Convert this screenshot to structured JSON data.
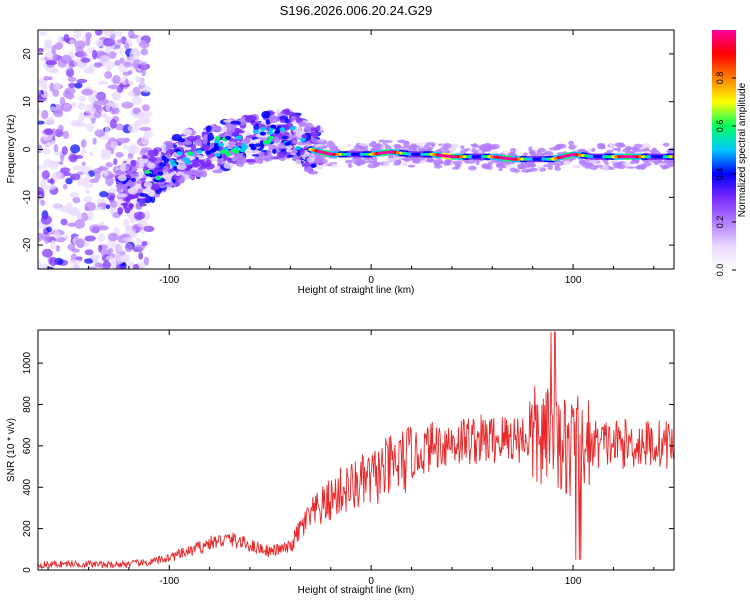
{
  "page_title": "S196.2026.006.20.24.G29",
  "chart_data": [
    {
      "type": "heatmap",
      "title": "S196.2026.006.20.24.G29",
      "xlabel": "Height of straight line (km)",
      "ylabel": "Frequency (Hz)",
      "xlim": [
        -165,
        150
      ],
      "ylim": [
        -25,
        25
      ],
      "xticks": [
        -100,
        0,
        100
      ],
      "yticks": [
        -20,
        -10,
        0,
        10,
        20
      ],
      "colorbar": {
        "label": "Normalized spectral amplitude",
        "range": [
          0.0,
          1.0
        ],
        "ticks": [
          0.0,
          0.2,
          0.4,
          0.6,
          0.8
        ],
        "tick_labels": [
          "0.0",
          "0.2",
          "0.4",
          "0.6",
          "0.8"
        ],
        "colors": [
          "#ffffff",
          "#e8d8ff",
          "#b27cff",
          "#7a2cff",
          "#0000ff",
          "#00c8ff",
          "#00ff60",
          "#ffff00",
          "#ff8000",
          "#ff0000",
          "#ff00a0"
        ]
      },
      "ridge": {
        "x": [
          -120,
          -110,
          -100,
          -90,
          -80,
          -70,
          -60,
          -50,
          -40,
          -35,
          -30,
          -20,
          -10,
          0,
          10,
          20,
          30,
          40,
          50,
          60,
          70,
          80,
          90,
          100,
          110,
          120,
          130,
          140,
          150
        ],
        "y": [
          -8,
          -6,
          -3,
          -1,
          0,
          1,
          2,
          3,
          3,
          2,
          0,
          -1,
          -1,
          -1,
          -0.5,
          -1,
          -1,
          -1.5,
          -1.5,
          -1.5,
          -2,
          -2,
          -2,
          -1,
          -1.5,
          -1.5,
          -1.5,
          -1.5,
          -1.5
        ]
      }
    },
    {
      "type": "line",
      "xlabel": "Height of straight line (km)",
      "ylabel": "SNR (10 * v/v)",
      "xlim": [
        -165,
        150
      ],
      "ylim": [
        0,
        1160
      ],
      "xticks": [
        -100,
        0,
        100
      ],
      "yticks": [
        0,
        200,
        400,
        600,
        800,
        1000
      ],
      "series": [
        {
          "name": "SNR",
          "color": "#e8282a",
          "x": [
            -165,
            -150,
            -140,
            -130,
            -120,
            -110,
            -100,
            -90,
            -80,
            -70,
            -60,
            -50,
            -40,
            -35,
            -30,
            -25,
            -20,
            -15,
            -10,
            -5,
            0,
            5,
            10,
            15,
            20,
            25,
            30,
            40,
            50,
            60,
            70,
            80,
            85,
            90,
            95,
            100,
            105,
            110,
            120,
            130,
            140,
            150
          ],
          "y": [
            25,
            30,
            28,
            25,
            30,
            35,
            60,
            90,
            130,
            150,
            120,
            90,
            110,
            200,
            260,
            300,
            340,
            380,
            400,
            420,
            440,
            470,
            500,
            520,
            540,
            570,
            600,
            620,
            630,
            630,
            640,
            640,
            630,
            620,
            600,
            590,
            600,
            610,
            610,
            610,
            610,
            610
          ]
        }
      ]
    }
  ]
}
